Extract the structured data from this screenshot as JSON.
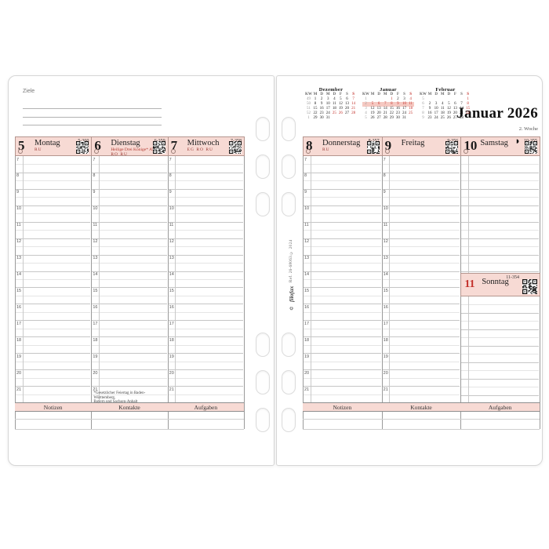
{
  "page_title": "Januar 2026",
  "week_label": "2. Woche",
  "ziele_label": "Ziele",
  "brand": {
    "recycle_icon": "♻",
    "name": "filofax",
    "ref": "Ref. 26-68063 © 2024"
  },
  "colors": {
    "accent_red": "#c3312b",
    "band_pink": "#f7dad4",
    "highlight_pink": "#f5c9c2"
  },
  "weekday_header": [
    "KW",
    "M",
    "D",
    "M",
    "D",
    "F",
    "S",
    "S"
  ],
  "mini_calendars": [
    {
      "title": "Dezember",
      "weeks": [
        {
          "kw": "49",
          "days": [
            "1",
            "2",
            "3",
            "4",
            "5",
            "6",
            "7"
          ],
          "red": [
            6
          ]
        },
        {
          "kw": "50",
          "days": [
            "8",
            "9",
            "10",
            "11",
            "12",
            "13",
            "14"
          ],
          "red": [
            6
          ]
        },
        {
          "kw": "51",
          "days": [
            "15",
            "16",
            "17",
            "18",
            "19",
            "20",
            "21"
          ],
          "red": [
            6
          ]
        },
        {
          "kw": "52",
          "days": [
            "22",
            "23",
            "24",
            "25",
            "26",
            "27",
            "28"
          ],
          "red": [
            3,
            4,
            6
          ]
        },
        {
          "kw": "1",
          "days": [
            "29",
            "30",
            "31",
            "",
            "",
            "",
            ""
          ],
          "red": []
        }
      ]
    },
    {
      "title": "Januar",
      "weeks": [
        {
          "kw": "1",
          "days": [
            "",
            "",
            "",
            "1",
            "2",
            "3",
            "4"
          ],
          "red": [
            3,
            6
          ]
        },
        {
          "kw": "2",
          "days": [
            "5",
            "6",
            "7",
            "8",
            "9",
            "10",
            "11"
          ],
          "red": [
            0,
            1,
            2,
            3,
            4,
            5,
            6
          ],
          "highlight": true
        },
        {
          "kw": "3",
          "days": [
            "12",
            "13",
            "14",
            "15",
            "16",
            "17",
            "18"
          ],
          "red": [
            6
          ]
        },
        {
          "kw": "4",
          "days": [
            "19",
            "20",
            "21",
            "22",
            "23",
            "24",
            "25"
          ],
          "red": [
            6
          ]
        },
        {
          "kw": "5",
          "days": [
            "26",
            "27",
            "28",
            "29",
            "30",
            "31",
            ""
          ],
          "red": []
        }
      ]
    },
    {
      "title": "Februar",
      "weeks": [
        {
          "kw": "5",
          "days": [
            "",
            "",
            "",
            "",
            "",
            "",
            "1"
          ],
          "red": [
            6
          ]
        },
        {
          "kw": "6",
          "days": [
            "2",
            "3",
            "4",
            "5",
            "6",
            "7",
            "8"
          ],
          "red": [
            6
          ]
        },
        {
          "kw": "7",
          "days": [
            "9",
            "10",
            "11",
            "12",
            "13",
            "14",
            "15"
          ],
          "red": [
            6
          ]
        },
        {
          "kw": "8",
          "days": [
            "16",
            "17",
            "18",
            "19",
            "20",
            "21",
            "22"
          ],
          "red": [
            6
          ]
        },
        {
          "kw": "9",
          "days": [
            "23",
            "24",
            "25",
            "26",
            "27",
            "28",
            ""
          ],
          "red": []
        }
      ]
    }
  ],
  "days": [
    {
      "num": "5",
      "name": "Montag",
      "count": "5-360",
      "holiday": "",
      "codes": "RU"
    },
    {
      "num": "6",
      "name": "Dienstag",
      "count": "6-359",
      "holiday": "Heilige Drei Könige*  AT",
      "codes": "RO  RU"
    },
    {
      "num": "7",
      "name": "Mittwoch",
      "count": "7-358",
      "holiday": "",
      "codes": "EG  RO  RU"
    },
    {
      "num": "8",
      "name": "Donnerstag",
      "count": "8-357",
      "holiday": "",
      "codes": "RU"
    },
    {
      "num": "9",
      "name": "Freitag",
      "count": "9-356",
      "holiday": "",
      "codes": ""
    },
    {
      "num": "10",
      "name": "Samstag",
      "count": "10-355",
      "holiday": "",
      "codes": "",
      "moon_icon": "◗"
    },
    {
      "num": "11",
      "name": "Sonntag",
      "count": "11-354",
      "holiday": "",
      "codes": ""
    }
  ],
  "hours": [
    "7",
    "8",
    "9",
    "10",
    "11",
    "12",
    "13",
    "14",
    "15",
    "16",
    "17",
    "18",
    "19",
    "20",
    "21"
  ],
  "footer_labels": [
    "Notizen",
    "Kontakte",
    "Aufgaben"
  ],
  "footnote": {
    "line1": "*Gesetzlicher Feiertag in Baden-Württemberg,",
    "line2": "Bayern und Sachsen-Anhalt"
  }
}
